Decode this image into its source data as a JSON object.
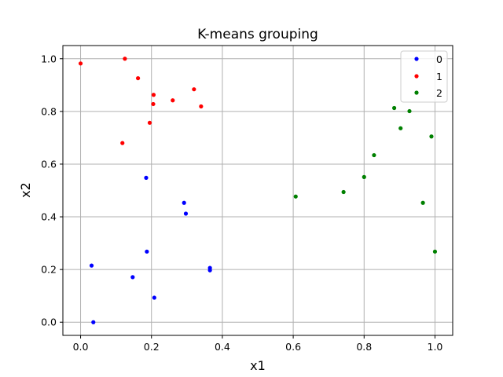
{
  "chart_data": {
    "type": "scatter",
    "title": "K-means grouping",
    "xlabel": "x1",
    "ylabel": "x2",
    "xlim": [
      -0.05,
      1.05
    ],
    "ylim": [
      -0.05,
      1.05
    ],
    "xticks": [
      "0.0",
      "0.2",
      "0.4",
      "0.6",
      "0.8",
      "1.0"
    ],
    "yticks": [
      "0.0",
      "0.2",
      "0.4",
      "0.6",
      "0.8",
      "1.0"
    ],
    "grid": true,
    "legend_position": "top-right",
    "series": [
      {
        "name": "0",
        "color": "#0000ff",
        "points": [
          [
            0.185,
            0.548
          ],
          [
            0.292,
            0.453
          ],
          [
            0.297,
            0.412
          ],
          [
            0.031,
            0.215
          ],
          [
            0.187,
            0.268
          ],
          [
            0.147,
            0.171
          ],
          [
            0.365,
            0.206
          ],
          [
            0.365,
            0.197
          ],
          [
            0.208,
            0.093
          ],
          [
            0.036,
            0.0
          ]
        ]
      },
      {
        "name": "1",
        "color": "#ff0000",
        "points": [
          [
            0.0,
            0.982
          ],
          [
            0.125,
            1.0
          ],
          [
            0.162,
            0.926
          ],
          [
            0.32,
            0.884
          ],
          [
            0.206,
            0.863
          ],
          [
            0.26,
            0.842
          ],
          [
            0.205,
            0.828
          ],
          [
            0.34,
            0.819
          ],
          [
            0.195,
            0.757
          ],
          [
            0.118,
            0.68
          ]
        ]
      },
      {
        "name": "2",
        "color": "#008000",
        "points": [
          [
            0.885,
            0.813
          ],
          [
            0.928,
            0.801
          ],
          [
            0.903,
            0.736
          ],
          [
            0.99,
            0.705
          ],
          [
            0.828,
            0.634
          ],
          [
            0.8,
            0.551
          ],
          [
            0.742,
            0.494
          ],
          [
            0.607,
            0.477
          ],
          [
            0.966,
            0.453
          ],
          [
            1.0,
            0.268
          ]
        ]
      }
    ]
  }
}
